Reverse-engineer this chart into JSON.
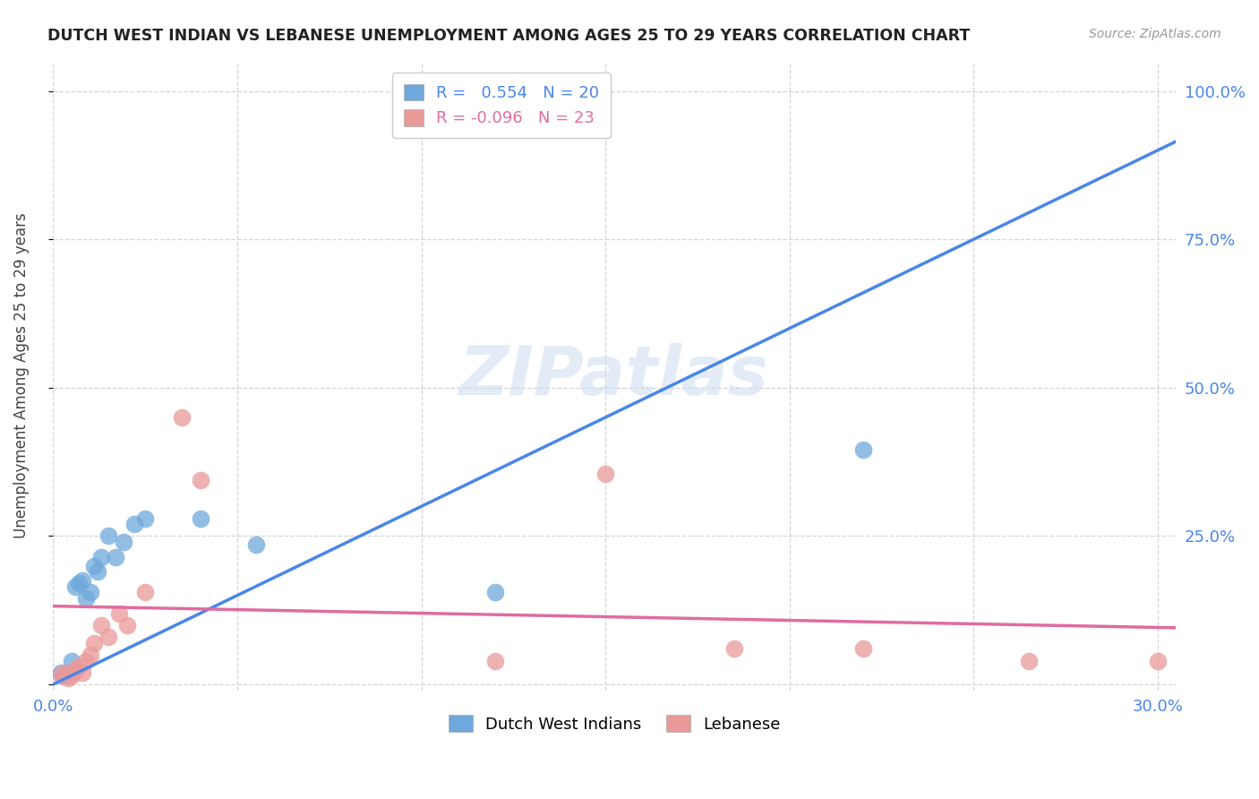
{
  "title": "DUTCH WEST INDIAN VS LEBANESE UNEMPLOYMENT AMONG AGES 25 TO 29 YEARS CORRELATION CHART",
  "source": "Source: ZipAtlas.com",
  "ylabel": "Unemployment Among Ages 25 to 29 years",
  "xlim": [
    0.0,
    0.305
  ],
  "ylim": [
    -0.01,
    1.05
  ],
  "xticks": [
    0.0,
    0.05,
    0.1,
    0.15,
    0.2,
    0.25,
    0.3
  ],
  "xticklabels": [
    "0.0%",
    "",
    "",
    "",
    "",
    "",
    "30.0%"
  ],
  "yticks_right": [
    0.0,
    0.25,
    0.5,
    0.75,
    1.0
  ],
  "yticklabels_right": [
    "",
    "25.0%",
    "50.0%",
    "75.0%",
    "100.0%"
  ],
  "r_blue": 0.554,
  "n_blue": 20,
  "r_pink": -0.096,
  "n_pink": 23,
  "blue_color": "#6fa8dc",
  "pink_color": "#ea9999",
  "blue_line_color": "#4a86e8",
  "pink_line_color": "#e06c9f",
  "blue_line_slope": 3.0,
  "blue_line_intercept": 0.0,
  "pink_line_slope": -0.12,
  "pink_line_intercept": 0.132,
  "grid_color": "#d0d0d0",
  "watermark": "ZIPatlas",
  "dutch_x": [
    0.002,
    0.003,
    0.005,
    0.006,
    0.007,
    0.008,
    0.009,
    0.01,
    0.011,
    0.012,
    0.013,
    0.015,
    0.017,
    0.019,
    0.022,
    0.025,
    0.04,
    0.055,
    0.12,
    0.22
  ],
  "dutch_y": [
    0.02,
    0.015,
    0.04,
    0.165,
    0.17,
    0.175,
    0.145,
    0.155,
    0.2,
    0.19,
    0.215,
    0.25,
    0.215,
    0.24,
    0.27,
    0.28,
    0.28,
    0.235,
    0.155,
    0.395
  ],
  "lebanese_x": [
    0.002,
    0.003,
    0.004,
    0.005,
    0.006,
    0.007,
    0.008,
    0.009,
    0.01,
    0.011,
    0.013,
    0.015,
    0.018,
    0.02,
    0.025,
    0.035,
    0.04,
    0.12,
    0.15,
    0.185,
    0.22,
    0.265,
    0.3
  ],
  "lebanese_y": [
    0.015,
    0.02,
    0.01,
    0.015,
    0.025,
    0.03,
    0.02,
    0.04,
    0.05,
    0.07,
    0.1,
    0.08,
    0.12,
    0.1,
    0.155,
    0.45,
    0.345,
    0.04,
    0.355,
    0.06,
    0.06,
    0.04,
    0.04
  ]
}
